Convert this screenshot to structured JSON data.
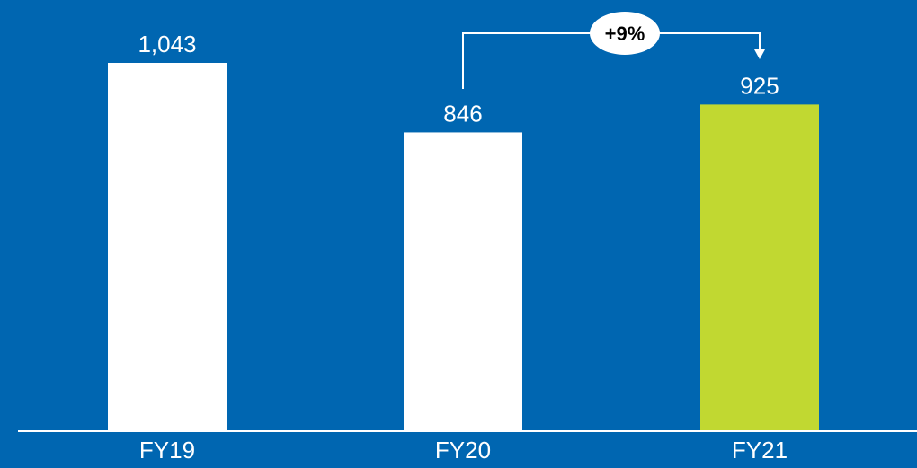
{
  "colors": {
    "background": "#0066b1",
    "bar_default": "#ffffff",
    "bar_highlight": "#c1d831",
    "text": "#ffffff",
    "axis": "#ffffff"
  },
  "chart_data": {
    "type": "bar",
    "categories": [
      "FY19",
      "FY20",
      "FY21"
    ],
    "values": [
      1043,
      846,
      925
    ],
    "value_labels": [
      "1,043",
      "846",
      "925"
    ],
    "highlight_index": 2,
    "title": "",
    "xlabel": "",
    "ylabel": "",
    "ylim": [
      0,
      1120
    ],
    "grid": false,
    "annotation": {
      "text": "+9%",
      "from_category": "FY20",
      "to_category": "FY21"
    }
  }
}
